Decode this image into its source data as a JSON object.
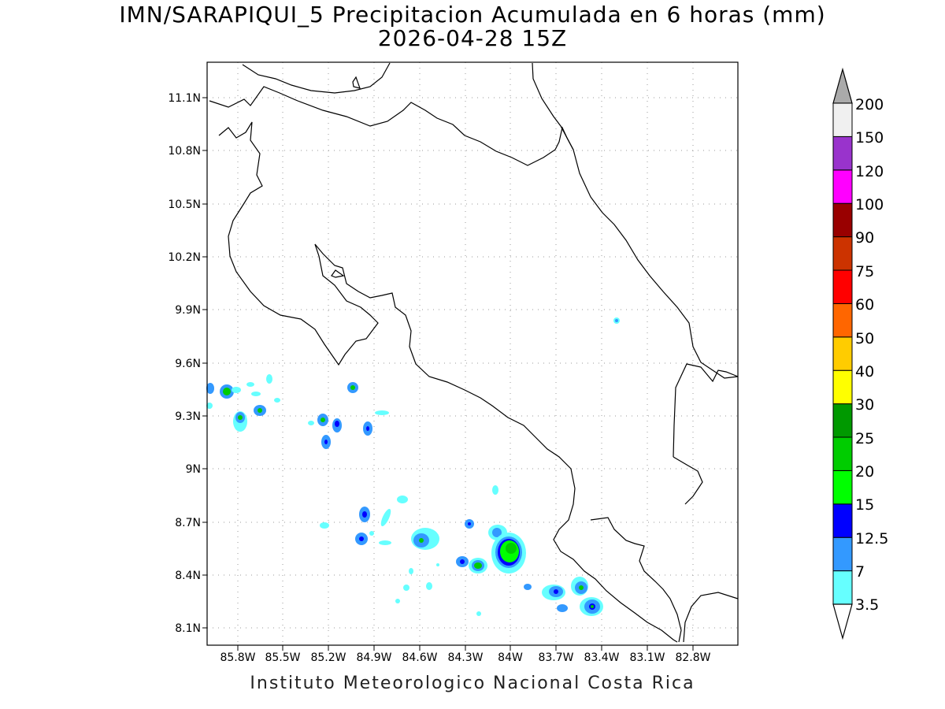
{
  "title": {
    "line1": "IMN/SARAPIQUI_5 Precipitacion Acumulada en 6 horas (mm)",
    "line2": "2026-04-28 15Z"
  },
  "footer": "Instituto Meteorologico Nacional Costa Rica",
  "axes": {
    "lat_labels": [
      "11.1N",
      "10.8N",
      "10.5N",
      "10.2N",
      "9.9N",
      "9.6N",
      "9.3N",
      "9N",
      "8.7N",
      "8.4N",
      "8.1N"
    ],
    "lon_labels": [
      "85.8W",
      "85.5W",
      "85.2W",
      "84.9W",
      "84.6W",
      "84.3W",
      "84W",
      "83.7W",
      "83.4W",
      "83.1W",
      "82.8W"
    ],
    "grid": true
  },
  "colorbar": {
    "labels": [
      "3.5",
      "7",
      "12.5",
      "15",
      "20",
      "25",
      "30",
      "40",
      "50",
      "60",
      "75",
      "90",
      "100",
      "120",
      "150",
      "200"
    ],
    "colors": [
      "#66ffff",
      "#3399ff",
      "#0000ff",
      "#00ff00",
      "#00cc00",
      "#009900",
      "#ffff00",
      "#ffcc00",
      "#ff6600",
      "#ff0000",
      "#cc3300",
      "#990000",
      "#ff00ff",
      "#9933cc",
      "#f0f0f0"
    ],
    "over_color": "#aaaaaa",
    "under_color": "#ffffff"
  }
}
